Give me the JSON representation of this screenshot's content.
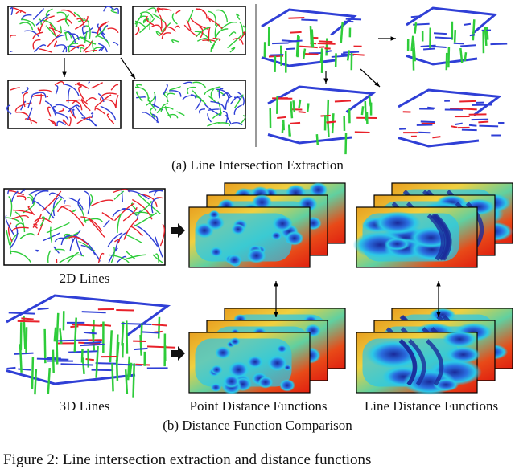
{
  "panel_a": {
    "caption": "(a) Line Intersection Extraction"
  },
  "panel_b": {
    "caption": "(b) Distance Function Comparison",
    "label_2d": "2D Lines",
    "label_3d": "3D Lines",
    "label_point": "Point Distance Functions",
    "label_line": "Line Distance Functions"
  },
  "figure_caption": "Figure 2: Line intersection extraction and distance functions",
  "colors": {
    "red": "#e8212a",
    "green": "#2ecc3a",
    "blue": "#2f3fd6",
    "heat_low": "#1a2a9a",
    "heat_mid": "#2bc8e8",
    "heat_high": "#e02010"
  }
}
